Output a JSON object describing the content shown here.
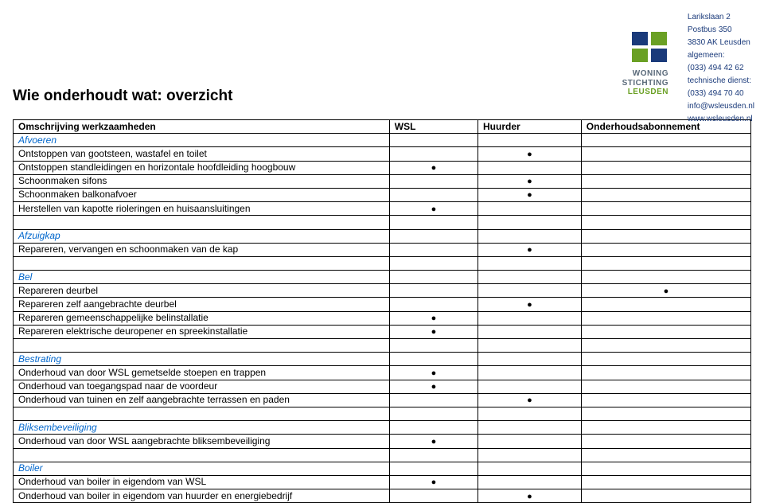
{
  "title": "Wie onderhoudt wat: overzicht",
  "logo": {
    "line1": "WONING",
    "line2": "STICHTING",
    "line3": "LEUSDEN",
    "text_color": "#5a6a7a",
    "accent_color": "#6aa024",
    "dark_color": "#1a3a7a"
  },
  "contact": {
    "addr1": "Larikslaan 2",
    "addr2": "Postbus 350",
    "addr3": "3830 AK  Leusden",
    "label1": "algemeen:",
    "phone1": "(033) 494 42 62",
    "label2": "technische dienst:",
    "phone2": "(033) 494 70 40",
    "email": "info@wsleusden.nl",
    "web": "www.wsleusden.nl"
  },
  "columns": {
    "c0": "Omschrijving werkzaamheden",
    "c1": "WSL",
    "c2": "Huurder",
    "c3": "Onderhoudsabonnement"
  },
  "bullet": "●",
  "rows": [
    {
      "type": "section",
      "label": "Afvoeren"
    },
    {
      "type": "item",
      "desc": "Ontstoppen van gootsteen, wastafel en toilet",
      "wsl": false,
      "huur": true,
      "abon": false
    },
    {
      "type": "item",
      "desc": "Ontstoppen standleidingen en horizontale hoofdleiding hoogbouw",
      "wsl": true,
      "huur": false,
      "abon": false
    },
    {
      "type": "item",
      "desc": "Schoonmaken sifons",
      "wsl": false,
      "huur": true,
      "abon": false
    },
    {
      "type": "item",
      "desc": "Schoonmaken balkonafvoer",
      "wsl": false,
      "huur": true,
      "abon": false
    },
    {
      "type": "item",
      "desc": "Herstellen van kapotte rioleringen en huisaansluitingen",
      "wsl": true,
      "huur": false,
      "abon": false
    },
    {
      "type": "blank"
    },
    {
      "type": "section",
      "label": "Afzuigkap"
    },
    {
      "type": "item",
      "desc": "Repareren, vervangen en schoonmaken van de kap",
      "wsl": false,
      "huur": true,
      "abon": false
    },
    {
      "type": "blank"
    },
    {
      "type": "section",
      "label": "Bel"
    },
    {
      "type": "item",
      "desc": "Repareren deurbel",
      "wsl": false,
      "huur": false,
      "abon": true
    },
    {
      "type": "item",
      "desc": "Repareren zelf aangebrachte deurbel",
      "wsl": false,
      "huur": true,
      "abon": false
    },
    {
      "type": "item",
      "desc": "Repareren gemeenschappelijke belinstallatie",
      "wsl": true,
      "huur": false,
      "abon": false
    },
    {
      "type": "item",
      "desc": "Repareren elektrische deuropener en spreekinstallatie",
      "wsl": true,
      "huur": false,
      "abon": false
    },
    {
      "type": "blank"
    },
    {
      "type": "section",
      "label": "Bestrating"
    },
    {
      "type": "item",
      "desc": "Onderhoud van door WSL gemetselde stoepen en trappen",
      "wsl": true,
      "huur": false,
      "abon": false
    },
    {
      "type": "item",
      "desc": "Onderhoud van toegangspad naar de voordeur",
      "wsl": true,
      "huur": false,
      "abon": false
    },
    {
      "type": "item",
      "desc": "Onderhoud van tuinen en zelf aangebrachte terrassen en paden",
      "wsl": false,
      "huur": true,
      "abon": false
    },
    {
      "type": "blank"
    },
    {
      "type": "section",
      "label": "Bliksembeveiliging"
    },
    {
      "type": "item",
      "desc": "Onderhoud van door WSL aangebrachte bliksembeveiliging",
      "wsl": true,
      "huur": false,
      "abon": false
    },
    {
      "type": "blank"
    },
    {
      "type": "section",
      "label": "Boiler"
    },
    {
      "type": "item",
      "desc": "Onderhoud van boiler in eigendom van WSL",
      "wsl": true,
      "huur": false,
      "abon": false
    },
    {
      "type": "item",
      "desc": "Onderhoud van boiler in eigendom van huurder en energiebedrijf",
      "wsl": false,
      "huur": true,
      "abon": false
    }
  ]
}
